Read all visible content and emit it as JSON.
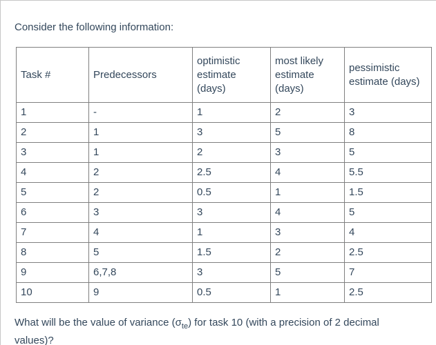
{
  "page": {
    "intro": "Consider the following information:",
    "question": {
      "prefix": "What will be the value of variance (",
      "sigma": "σ",
      "subscript": "te",
      "suffix": ") for task 10 (with a precision of 2 decimal values)?"
    }
  },
  "table": {
    "columns": [
      "Task #",
      "Predecessors",
      "optimistic estimate (days)",
      "most likely estimate (days)",
      "pessimistic estimate (days)"
    ],
    "rows": [
      [
        "1",
        "-",
        "1",
        "2",
        "3"
      ],
      [
        "2",
        "1",
        "3",
        "5",
        "8"
      ],
      [
        "3",
        "1",
        "2",
        "3",
        "5"
      ],
      [
        "4",
        "2",
        "2.5",
        "4",
        "5.5"
      ],
      [
        "5",
        "2",
        "0.5",
        "1",
        "1.5"
      ],
      [
        "6",
        "3",
        "3",
        "4",
        "5"
      ],
      [
        "7",
        "4",
        "1",
        "3",
        "4"
      ],
      [
        "8",
        "5",
        "1.5",
        "2",
        "2.5"
      ],
      [
        "9",
        "6,7,8",
        "3",
        "5",
        "7"
      ],
      [
        "10",
        "9",
        "0.5",
        "1",
        "2.5"
      ]
    ]
  },
  "colors": {
    "text": "#33475b",
    "table_border": "#7f7f7f",
    "frame_border": "#c6c6c6",
    "background": "#ffffff"
  }
}
